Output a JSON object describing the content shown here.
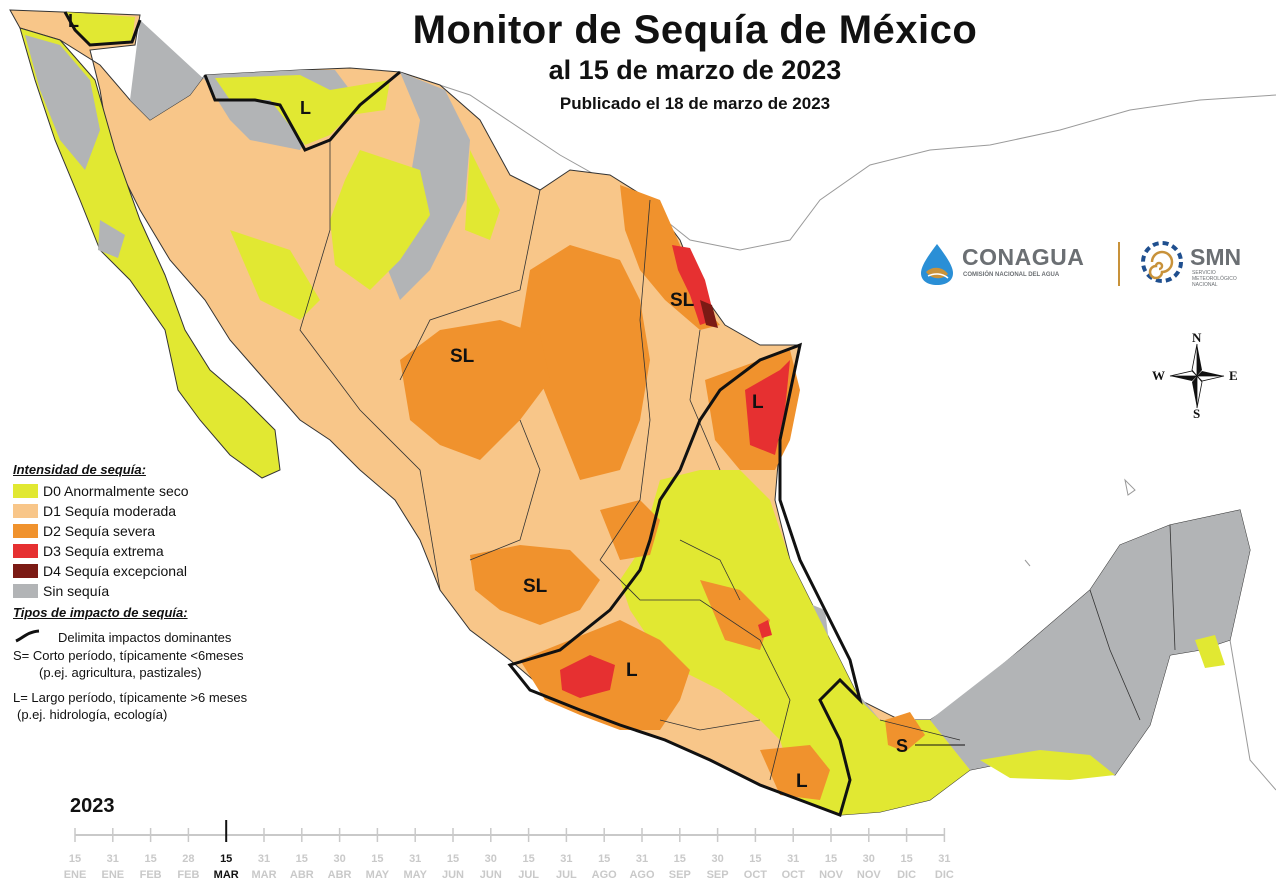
{
  "header": {
    "title": "Monitor de Sequía de México",
    "subtitle": "al 15 de marzo de 2023",
    "published": "Publicado el 18 de marzo de 2023"
  },
  "logos": {
    "conagua_name": "CONAGUA",
    "conagua_tagline": "COMISIÓN NACIONAL DEL AGUA",
    "smn_name": "SMN",
    "smn_tagline": "SERVICIO METEOROLÓGICO NACIONAL"
  },
  "compass": {
    "north": "N",
    "south": "S",
    "east": "E",
    "west": "W"
  },
  "colors": {
    "D0": "#e1e832",
    "D1": "#f8c689",
    "D2": "#f0922d",
    "D3": "#e63031",
    "D4": "#7b1a14",
    "none": "#b2b4b6",
    "sea": "#ffffff",
    "boundary": "#111111"
  },
  "legend": {
    "intensity_title": "Intensidad de sequía:",
    "items": [
      {
        "code": "D0",
        "label": "D0 Anormalmente seco"
      },
      {
        "code": "D1",
        "label": "D1 Sequía moderada"
      },
      {
        "code": "D2",
        "label": "D2 Sequía severa"
      },
      {
        "code": "D3",
        "label": "D3 Sequía extrema"
      },
      {
        "code": "D4",
        "label": "D4 Sequía excepcional"
      },
      {
        "code": "none",
        "label": "Sin sequía"
      }
    ],
    "impact_title": "Tipos de impacto de sequía:",
    "impact_lines": [
      "Delimita impactos dominantes",
      "S= Corto período, típicamente <6meses",
      "(p.ej. agricultura, pastizales)",
      "L= Largo período, típicamente >6 meses",
      "(p.ej. hidrología, ecología)"
    ]
  },
  "map_labels": {
    "nw_corner": "L",
    "sonora_north": "L",
    "tamaulipas": "SL",
    "chihuahua": "SL",
    "tamaulipas_coast": "L",
    "central": "SL",
    "michoacan": "L",
    "oaxaca": "L",
    "tabasco": "S"
  },
  "timeline": {
    "year": "2023",
    "current": "15 MAR",
    "ticks": [
      {
        "day": "15",
        "month": "ENE"
      },
      {
        "day": "31",
        "month": "ENE"
      },
      {
        "day": "15",
        "month": "FEB"
      },
      {
        "day": "28",
        "month": "FEB"
      },
      {
        "day": "15",
        "month": "MAR",
        "active": true
      },
      {
        "day": "31",
        "month": "MAR"
      },
      {
        "day": "15",
        "month": "ABR"
      },
      {
        "day": "30",
        "month": "ABR"
      },
      {
        "day": "15",
        "month": "MAY"
      },
      {
        "day": "31",
        "month": "MAY"
      },
      {
        "day": "15",
        "month": "JUN"
      },
      {
        "day": "30",
        "month": "JUN"
      },
      {
        "day": "15",
        "month": "JUL"
      },
      {
        "day": "31",
        "month": "JUL"
      },
      {
        "day": "15",
        "month": "AGO"
      },
      {
        "day": "31",
        "month": "AGO"
      },
      {
        "day": "15",
        "month": "SEP"
      },
      {
        "day": "30",
        "month": "SEP"
      },
      {
        "day": "15",
        "month": "OCT"
      },
      {
        "day": "31",
        "month": "OCT"
      },
      {
        "day": "15",
        "month": "NOV"
      },
      {
        "day": "30",
        "month": "NOV"
      },
      {
        "day": "15",
        "month": "DIC"
      },
      {
        "day": "31",
        "month": "DIC"
      }
    ]
  }
}
